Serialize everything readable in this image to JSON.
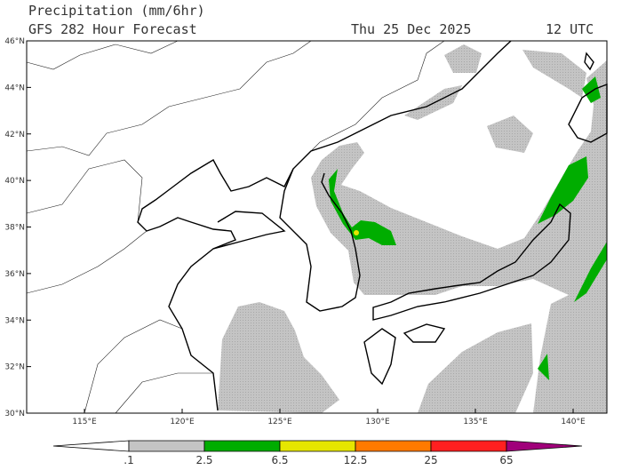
{
  "header": {
    "title": "Precipitation (mm/6hr)",
    "subtitle": "GFS 282 Hour Forecast",
    "date": "Thu 25 Dec 2025",
    "time": "12 UTC"
  },
  "map": {
    "lat_labels": [
      "46°N",
      "44°N",
      "42°N",
      "40°N",
      "38°N",
      "36°N",
      "34°N",
      "32°N",
      "30°N"
    ],
    "lon_labels": [
      "115°E",
      "120°E",
      "125°E",
      "130°E",
      "135°E",
      "140°E"
    ]
  },
  "legend": {
    "labels": [
      ".1",
      "2.5",
      "6.5",
      "12.5",
      "25",
      "65"
    ],
    "colors": [
      "#ffffff",
      "#c4c4c4",
      "#00ad00",
      "#e6e600",
      "#ff7a00",
      "#ff2020",
      "#a0007a"
    ]
  }
}
